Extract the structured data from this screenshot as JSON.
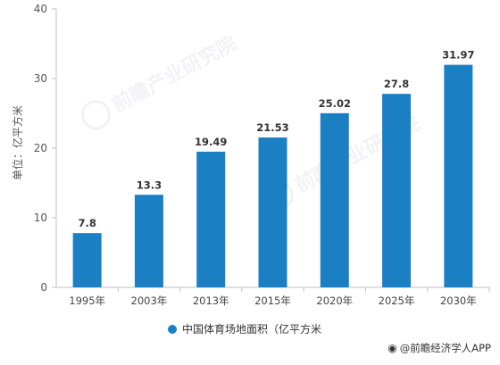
{
  "chart_data": {
    "type": "bar",
    "categories": [
      "1995年",
      "2003年",
      "2013年",
      "2015年",
      "2020年",
      "2025年",
      "2030年"
    ],
    "values": [
      7.8,
      13.3,
      19.49,
      21.53,
      25.02,
      27.8,
      31.97
    ],
    "value_labels": [
      "7.8",
      "13.3",
      "19.49",
      "21.53",
      "25.02",
      "27.8",
      "31.97"
    ],
    "ylabel": "单位：亿平方米",
    "ylim": [
      0,
      40
    ],
    "yticks": [
      0,
      10,
      20,
      30,
      40
    ],
    "grid": false,
    "legend": {
      "label": "中国体育场地面积（亿平方米",
      "placement": "bottom"
    },
    "bar_color": "#1b7fc4"
  },
  "watermark": {
    "text": "前瞻产业研究院"
  },
  "credit": {
    "text": "@前瞻经济学人APP"
  }
}
